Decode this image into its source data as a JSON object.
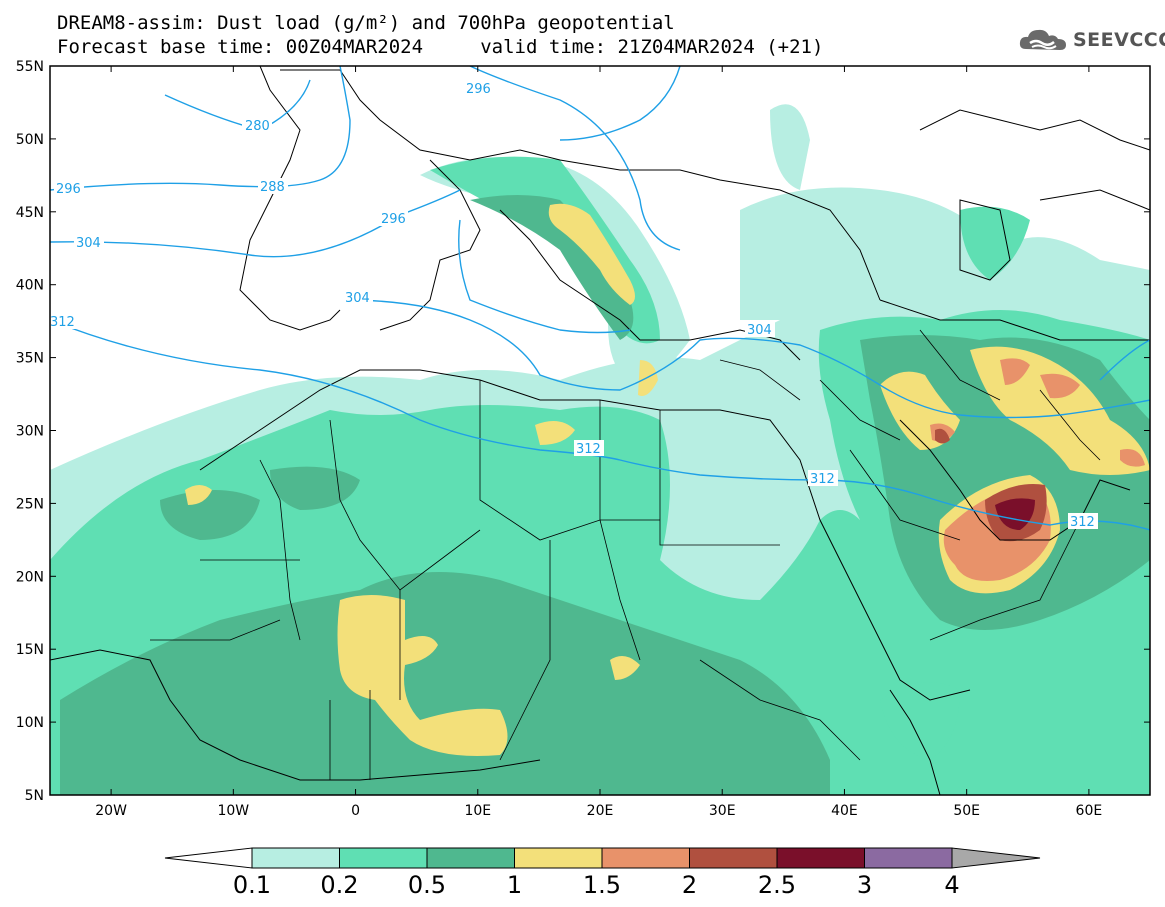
{
  "title": {
    "line1": "DREAM8-assim: Dust load (g/m²) and 700hPa geopotential",
    "line2": "Forecast base time: 00Z04MAR2024     valid time: 21Z04MAR2024 (+21)"
  },
  "logo": {
    "text": "SEEVCCC",
    "icon": "cloud-logo-icon"
  },
  "map": {
    "lat_labels": [
      "55N",
      "50N",
      "45N",
      "40N",
      "35N",
      "30N",
      "25N",
      "20N",
      "15N",
      "10N",
      "5N"
    ],
    "lon_labels": [
      "20W",
      "10W",
      "0",
      "10E",
      "20E",
      "30E",
      "40E",
      "50E",
      "60E"
    ],
    "lon_range": [
      -25,
      65
    ],
    "lat_range": [
      5,
      55
    ],
    "contour_labels": [
      "280",
      "288",
      "296",
      "296",
      "296",
      "304",
      "304",
      "304",
      "312",
      "312",
      "312",
      "312"
    ]
  },
  "colorbar": {
    "levels": [
      "0.1",
      "0.2",
      "0.5",
      "1",
      "1.5",
      "2",
      "2.5",
      "3",
      "4"
    ],
    "colors": [
      "#b7eee2",
      "#5fdfb3",
      "#4fb88f",
      "#f3e07a",
      "#e8926a",
      "#b0503f",
      "#7a0f2a",
      "#8b6aa1"
    ],
    "under_color": "#ffffff",
    "over_color": "#a8a8a8"
  },
  "colors": {
    "contour": "#1fa0e6",
    "border": "#000000"
  }
}
